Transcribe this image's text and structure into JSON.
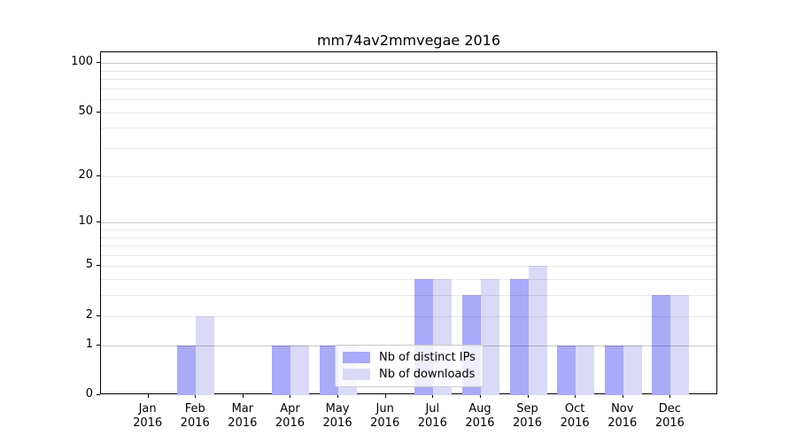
{
  "chart_data": {
    "type": "bar",
    "title": "mm74av2mmvegae 2016",
    "categories": [
      "Jan",
      "Feb",
      "Mar",
      "Apr",
      "May",
      "Jun",
      "Jul",
      "Aug",
      "Sep",
      "Oct",
      "Nov",
      "Dec"
    ],
    "category_year": "2016",
    "series": [
      {
        "name": "Nb of distinct IPs",
        "color": "#aaaaf8",
        "values": [
          0,
          1,
          0,
          1,
          1,
          0,
          4,
          3,
          4,
          1,
          1,
          3
        ]
      },
      {
        "name": "Nb of downloads",
        "color": "#dadaf8",
        "values": [
          0,
          2,
          0,
          1,
          1,
          0,
          4,
          4,
          5,
          1,
          1,
          3
        ]
      }
    ],
    "yscale": "log(1+y)",
    "ylim": [
      0,
      116
    ],
    "yticks": [
      0,
      1,
      2,
      5,
      10,
      20,
      50,
      100
    ],
    "major_gridlines": [
      1,
      10,
      100
    ],
    "minor_gridlines": [
      2,
      3,
      4,
      5,
      6,
      7,
      8,
      9,
      20,
      30,
      40,
      50,
      60,
      70,
      80,
      90
    ],
    "grid": true,
    "legend_position": "lower center-left",
    "colors": {
      "background": "#ffffff",
      "spine": "#000000",
      "text": "#000000",
      "major_grid": "#c7c7c7",
      "minor_grid": "#eaeaea"
    }
  }
}
